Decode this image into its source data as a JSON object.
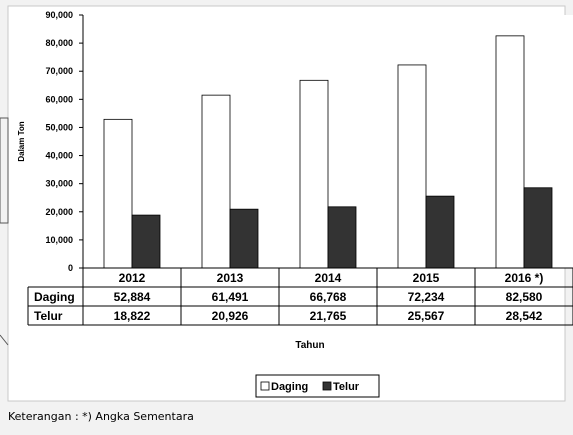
{
  "chart_data": {
    "type": "bar",
    "categories": [
      "2012",
      "2013",
      "2014",
      "2015",
      "2016 *)"
    ],
    "series": [
      {
        "name": "Daging",
        "values": [
          52884,
          61491,
          66768,
          72234,
          82580
        ],
        "labels": [
          "52,884",
          "61,491",
          "66,768",
          "72,234",
          "82,580"
        ],
        "color": "#ffffff"
      },
      {
        "name": "Telur",
        "values": [
          18822,
          20926,
          21765,
          25567,
          28542
        ],
        "labels": [
          "18,822",
          "20,926",
          "21,765",
          "25,567",
          "28,542"
        ],
        "color": "#333333"
      }
    ],
    "ylim": [
      0,
      90000
    ],
    "yticks": [
      {
        "value": 0,
        "label": "0"
      },
      {
        "value": 10000,
        "label": "10,000"
      },
      {
        "value": 20000,
        "label": "20,000"
      },
      {
        "value": 30000,
        "label": "30,000"
      },
      {
        "value": 40000,
        "label": "40,000"
      },
      {
        "value": 50000,
        "label": "50,000"
      },
      {
        "value": 60000,
        "label": "60,000"
      },
      {
        "value": 70000,
        "label": "70,000"
      },
      {
        "value": 80000,
        "label": "80,000"
      },
      {
        "value": 90000,
        "label": "90,000"
      }
    ],
    "xlabel": "Tahun",
    "ylabel": "Dalam Ton",
    "grid": false,
    "legend": "bottom",
    "data_table": true
  },
  "note": "Keterangan :  *)    Angka Sementara"
}
